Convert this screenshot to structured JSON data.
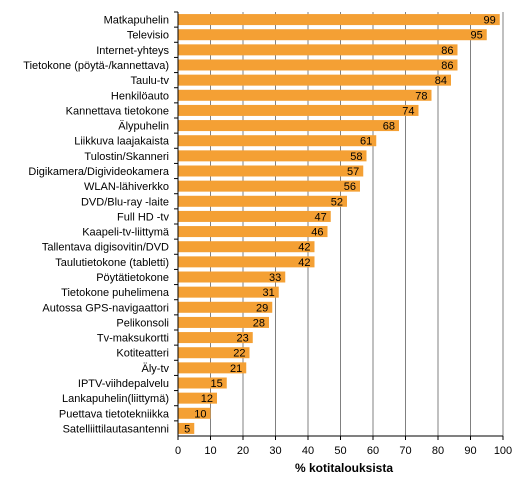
{
  "chart_data": {
    "type": "bar",
    "orientation": "horizontal",
    "categories": [
      "Matkapuhelin",
      "Televisio",
      "Internet-yhteys",
      "Tietokone (pöytä-/kannettava)",
      "Taulu-tv",
      "Henkilöauto",
      "Kannettava tietokone",
      "Älypuhelin",
      "Liikkuva laajakaista",
      "Tulostin/Skanneri",
      "Digikamera/Digivideokamera",
      "WLAN-lähiverkko",
      "DVD/Blu-ray -laite",
      "Full HD -tv",
      "Kaapeli-tv-liittymä",
      "Tallentava digisovitin/DVD",
      "Taulutietokone (tabletti)",
      "Pöytätietokone",
      "Tietokone puhelimena",
      "Autossa GPS-navigaattori",
      "Pelikonsoli",
      "Tv-maksukortti",
      "Kotiteatteri",
      "Äly-tv",
      "IPTV-viihdepalvelu",
      "Lankapuhelin(liittymä)",
      "Puettava tietotekniikka",
      "Satelliittilautasantenni"
    ],
    "values": [
      99,
      95,
      86,
      86,
      84,
      78,
      74,
      68,
      61,
      58,
      57,
      56,
      52,
      47,
      46,
      42,
      42,
      33,
      31,
      29,
      28,
      23,
      22,
      21,
      15,
      12,
      10,
      5
    ],
    "xlabel": "% kotitalouksista",
    "xlim": [
      0,
      100
    ],
    "xticks": [
      0,
      10,
      20,
      30,
      40,
      50,
      60,
      70,
      80,
      90,
      100
    ],
    "grid": "vertical",
    "bar_color": "#f4a034",
    "grid_color": "#808080"
  }
}
